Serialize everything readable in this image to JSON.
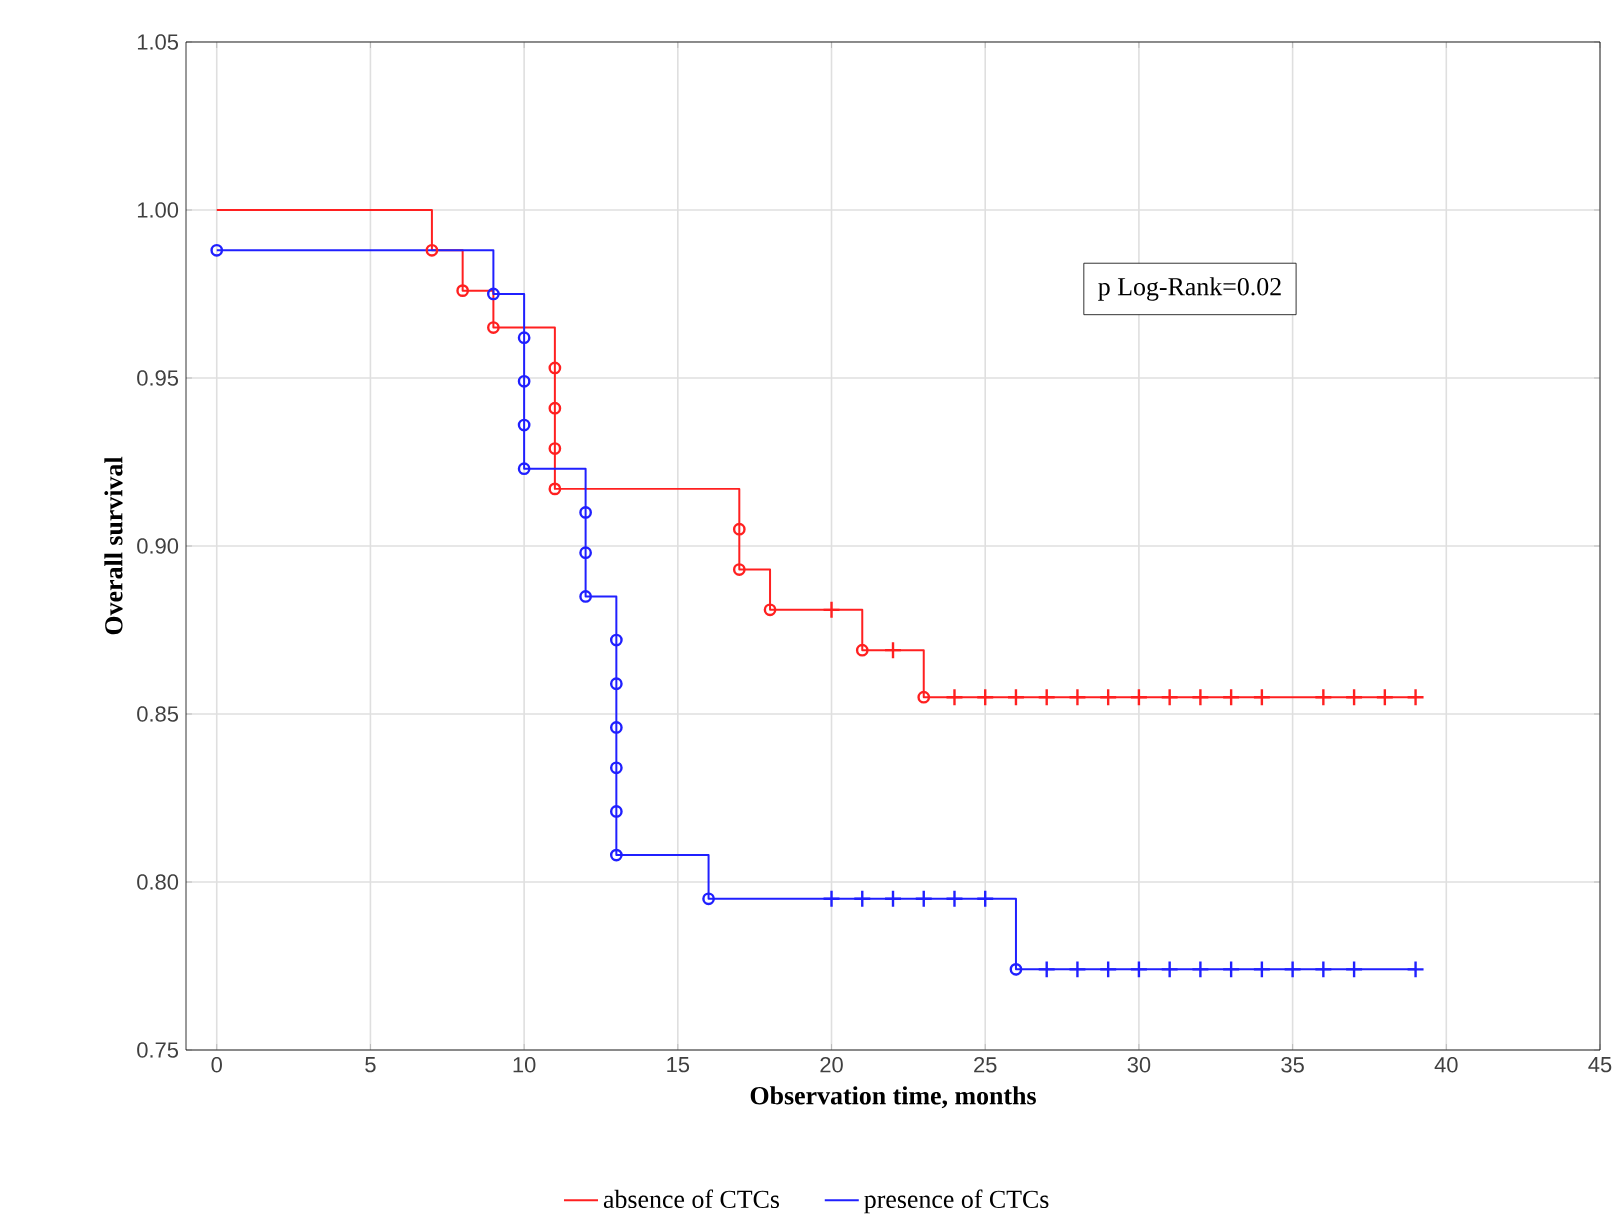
{
  "chart_data": {
    "type": "step",
    "xlabel": "Observation time, months",
    "ylabel": "Overall survival",
    "annotations": [
      "p Log-Rank=0.02"
    ],
    "xlim": [
      -1,
      45
    ],
    "ylim": [
      0.75,
      1.05
    ],
    "xticks": [
      0,
      5,
      10,
      15,
      20,
      25,
      30,
      35,
      40,
      45
    ],
    "yticks": [
      {
        "value": 0.75,
        "label": "0.75"
      },
      {
        "value": 0.8,
        "label": "0.80"
      },
      {
        "value": 0.85,
        "label": "0.85"
      },
      {
        "value": 0.9,
        "label": "0.90"
      },
      {
        "value": 0.95,
        "label": "0.95"
      },
      {
        "value": 1.0,
        "label": "1.00"
      },
      {
        "value": 1.05,
        "label": "1.05"
      }
    ],
    "grid": true,
    "legend": "bottom",
    "series": [
      {
        "name": "absence of CTCs",
        "color": "#ff2020",
        "x": [
          0,
          7,
          8,
          9,
          11,
          17,
          18,
          21,
          23,
          39
        ],
        "values": [
          1.0,
          0.988,
          0.976,
          0.965,
          0.917,
          0.893,
          0.881,
          0.869,
          0.855,
          0.855
        ]
      },
      {
        "name": "presence of CTCs",
        "color": "#2020ff",
        "x": [
          0,
          9,
          10,
          12,
          13,
          16,
          26,
          39
        ],
        "values": [
          0.988,
          0.975,
          0.923,
          0.885,
          0.808,
          0.795,
          0.774,
          0.774
        ]
      },
      {
        "type": "scatter",
        "marker": "circle",
        "color": "#ff2020",
        "x": [
          7,
          8,
          9,
          11,
          11,
          11,
          11,
          17,
          17,
          18,
          21,
          23
        ],
        "values": [
          0.988,
          0.976,
          0.965,
          0.953,
          0.941,
          0.929,
          0.917,
          0.905,
          0.893,
          0.881,
          0.869,
          0.855
        ]
      },
      {
        "type": "scatter",
        "marker": "cross",
        "color": "#ff2020",
        "x": [
          20,
          22,
          24,
          25,
          26,
          27,
          28,
          29,
          30,
          31,
          32,
          33,
          34,
          36,
          37,
          38,
          39
        ],
        "values": [
          0.881,
          0.869,
          0.855,
          0.855,
          0.855,
          0.855,
          0.855,
          0.855,
          0.855,
          0.855,
          0.855,
          0.855,
          0.855,
          0.855,
          0.855,
          0.855,
          0.855
        ]
      },
      {
        "type": "scatter",
        "marker": "circle",
        "color": "#2020ff",
        "x": [
          0,
          9,
          10,
          10,
          10,
          10,
          12,
          12,
          12,
          13,
          13,
          13,
          13,
          13,
          13,
          16,
          26
        ],
        "values": [
          0.988,
          0.975,
          0.962,
          0.949,
          0.936,
          0.923,
          0.91,
          0.898,
          0.885,
          0.872,
          0.859,
          0.846,
          0.834,
          0.821,
          0.808,
          0.795,
          0.774
        ]
      },
      {
        "type": "scatter",
        "marker": "cross",
        "color": "#2020ff",
        "x": [
          20,
          21,
          22,
          23,
          24,
          25,
          27,
          28,
          29,
          30,
          31,
          32,
          33,
          34,
          35,
          36,
          37,
          39
        ],
        "values": [
          0.795,
          0.795,
          0.795,
          0.795,
          0.795,
          0.795,
          0.774,
          0.774,
          0.774,
          0.774,
          0.774,
          0.774,
          0.774,
          0.774,
          0.774,
          0.774,
          0.774,
          0.774
        ]
      }
    ]
  }
}
